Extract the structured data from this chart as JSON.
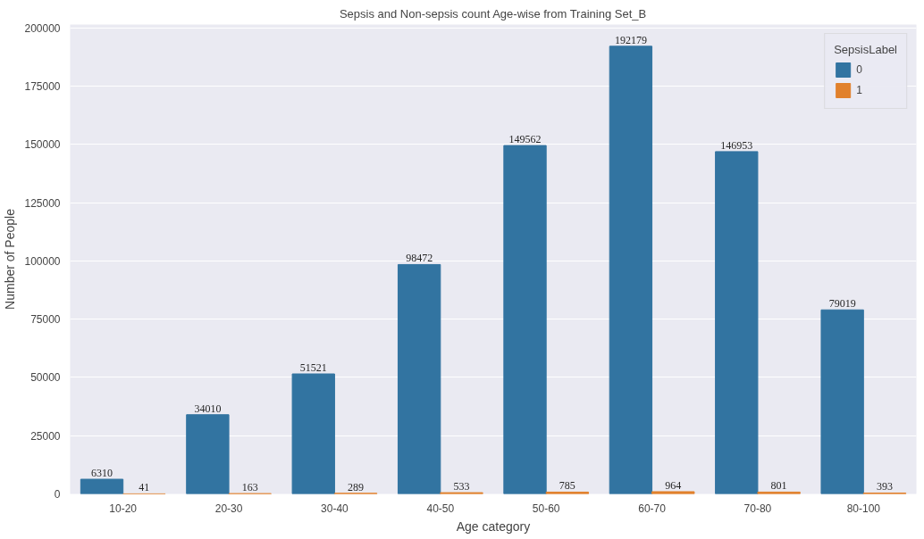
{
  "chart_data": {
    "type": "bar",
    "title": "Sepsis and Non-sepsis count Age-wise from Training Set_B",
    "xlabel": "Age category",
    "ylabel": "Number of People",
    "legend_title": "SepsisLabel",
    "categories": [
      "10-20",
      "20-30",
      "30-40",
      "40-50",
      "50-60",
      "60-70",
      "70-80",
      "80-100"
    ],
    "series": [
      {
        "name": "0",
        "color": "#3274a1",
        "values": [
          6310,
          34010,
          51521,
          98472,
          149562,
          192179,
          146953,
          79019
        ]
      },
      {
        "name": "1",
        "color": "#e1812c",
        "values": [
          41,
          163,
          289,
          533,
          785,
          964,
          801,
          393
        ]
      }
    ],
    "ylim": [
      0,
      201500
    ],
    "yticks": [
      0,
      25000,
      50000,
      75000,
      100000,
      125000,
      150000,
      175000,
      200000
    ],
    "grid": "y",
    "legend": "top right",
    "data_labels": true
  }
}
